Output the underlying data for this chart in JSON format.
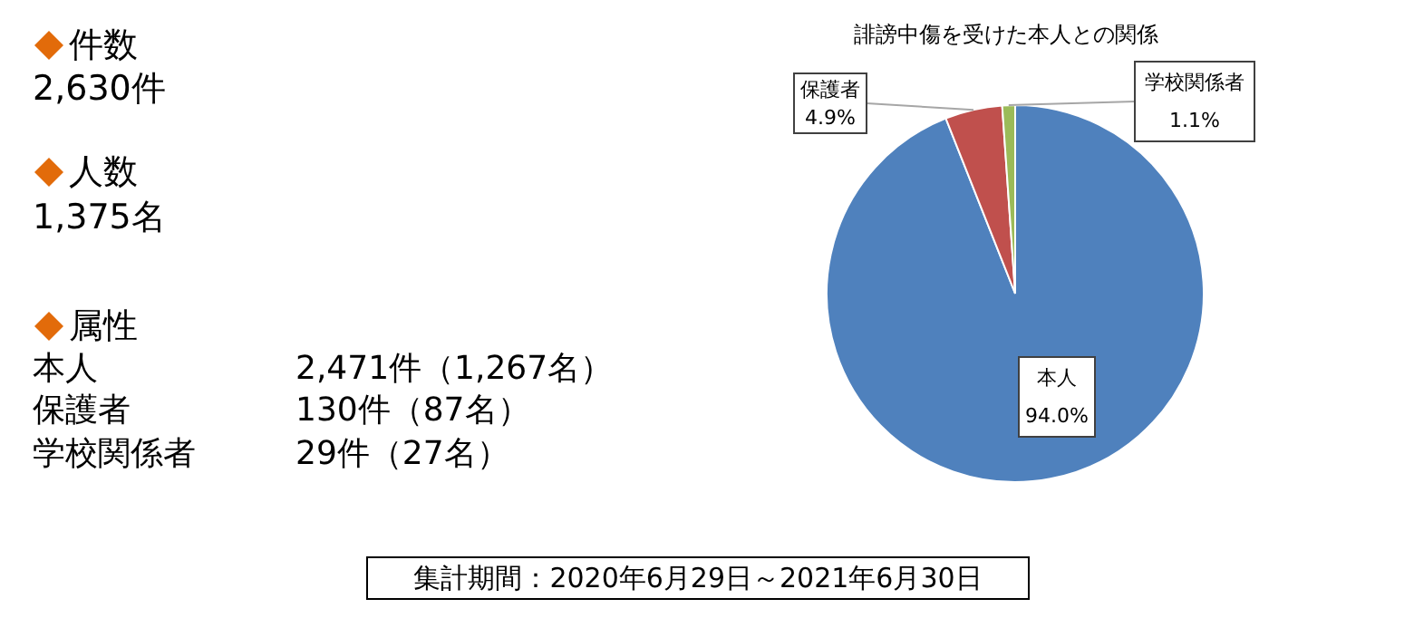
{
  "chart_data": [
    {
      "type": "other",
      "annotations": [
        "件数",
        "2,630件",
        "人数",
        "1,375名",
        "属性",
        "本人",
        "2,471件（1,267名）",
        "保護者",
        "130件（87名）",
        "学校関係者",
        "29件（27名）",
        "集計期間：2020年6月29日～2021年6月30日"
      ]
    },
    {
      "type": "pie",
      "title": "誹謗中傷を受けた本人との関係",
      "categories": [
        "本人",
        "保護者",
        "学校関係者"
      ],
      "values": [
        94.0,
        4.9,
        1.1
      ],
      "colors": [
        "#4f81bd",
        "#c0504d",
        "#9bbb59"
      ],
      "value_labels": [
        "94.0%",
        "4.9%",
        "1.1%"
      ]
    }
  ]
}
